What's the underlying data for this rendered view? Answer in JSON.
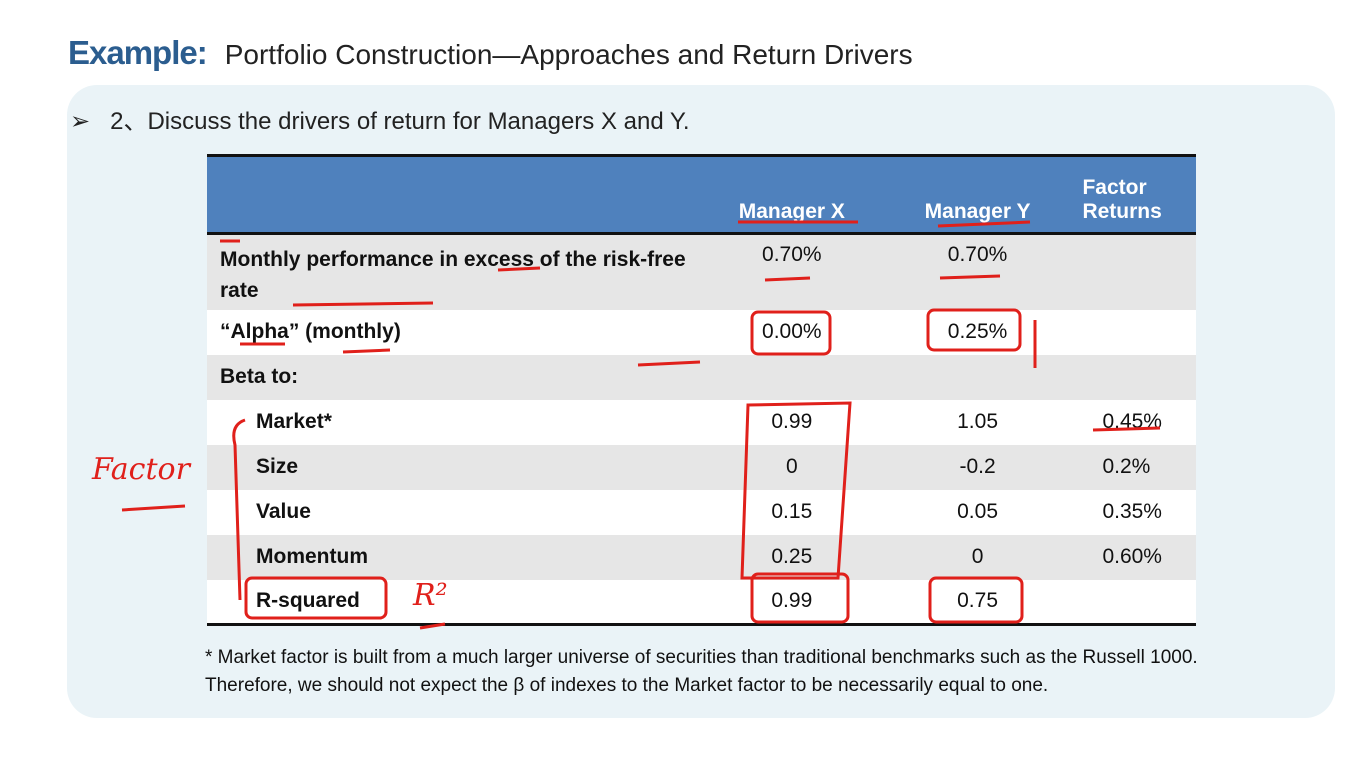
{
  "header": {
    "label": "Example:",
    "title": "Portfolio Construction—Approaches and Return Drivers"
  },
  "bullet": "2、Discuss the drivers of return for Managers X and Y.",
  "table": {
    "columns": [
      "Manager X",
      "Manager Y",
      "Factor Returns"
    ],
    "rows": [
      {
        "label": "Monthly performance in excess of the risk-free rate",
        "manager_x": "0.70%",
        "manager_y": "0.70%"
      },
      {
        "label": "“Alpha” (monthly)",
        "manager_x": "0.00%",
        "manager_y": "0.25%"
      },
      {
        "label": "Beta to:"
      },
      {
        "label": "Market*",
        "manager_x": "0.99",
        "manager_y": "1.05",
        "factor_return": "0.45%"
      },
      {
        "label": "Size",
        "manager_x": "0",
        "manager_y": "-0.2",
        "factor_return": "0.2%"
      },
      {
        "label": "Value",
        "manager_x": "0.15",
        "manager_y": "0.05",
        "factor_return": "0.35%"
      },
      {
        "label": "Momentum",
        "manager_x": "0.25",
        "manager_y": "0",
        "factor_return": "0.60%"
      },
      {
        "label": "R-squared",
        "manager_x": "0.99",
        "manager_y": "0.75"
      }
    ]
  },
  "footnote": [
    "* Market factor is built from a much larger universe of securities than traditional benchmarks such as the Russell 1000.",
    "Therefore, we should not expect the β of indexes to the Market factor to be necessarily equal to one."
  ],
  "annotations": [
    "Factor",
    "R²"
  ]
}
